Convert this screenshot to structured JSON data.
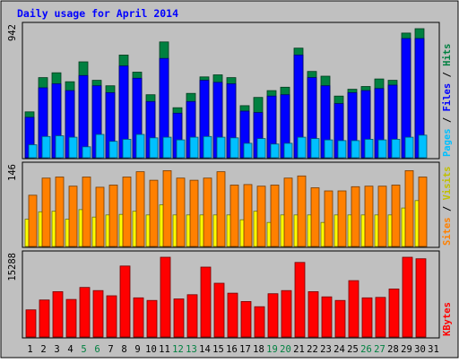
{
  "chart_data": {
    "type": "bar",
    "title": "Daily usage for April 2014",
    "days": [
      "1",
      "2",
      "3",
      "4",
      "5",
      "6",
      "7",
      "8",
      "9",
      "10",
      "11",
      "12",
      "13",
      "14",
      "15",
      "16",
      "17",
      "18",
      "19",
      "20",
      "21",
      "22",
      "23",
      "24",
      "25",
      "26",
      "27",
      "28",
      "29",
      "30",
      "31"
    ],
    "weekend_days": [
      "5",
      "6",
      "12",
      "13",
      "19",
      "20",
      "26",
      "27"
    ],
    "panels": [
      {
        "id": "hits",
        "ymax_label": "942",
        "ymax": 942,
        "axis_labels": [
          "Hits",
          "Files",
          "Pages"
        ],
        "series": [
          {
            "name": "Hits",
            "color": "#008040",
            "values": [
              335,
              585,
              620,
              555,
              700,
              565,
              525,
              750,
              625,
              460,
              845,
              365,
              470,
              590,
              605,
              585,
              380,
              440,
              490,
              515,
              800,
              630,
              595,
              450,
              500,
              520,
              575,
              565,
              910,
              942,
              0
            ]
          },
          {
            "name": "Files",
            "color": "#0000ff",
            "values": [
              295,
              510,
              540,
              490,
              600,
              525,
              475,
              670,
              580,
              410,
              725,
              325,
              410,
              565,
              550,
              540,
              340,
              330,
              450,
              460,
              750,
              585,
              525,
              395,
              475,
              490,
              505,
              530,
              870,
              870,
              0
            ]
          },
          {
            "name": "Pages",
            "color": "#00c0ff",
            "values": [
              95,
              155,
              160,
              150,
              80,
              170,
              120,
              135,
              170,
              145,
              150,
              130,
              150,
              155,
              150,
              145,
              105,
              140,
              100,
              105,
              150,
              140,
              130,
              125,
              125,
              135,
              130,
              135,
              150,
              165,
              0
            ]
          }
        ]
      },
      {
        "id": "visits",
        "ymax_label": "146",
        "ymax": 146,
        "axis_labels": [
          "Visits",
          "Sites"
        ],
        "series": [
          {
            "name": "Visits",
            "color": "#ffff00",
            "values": [
              51,
              65,
              66,
              51,
              69,
              55,
              59,
              60,
              66,
              59,
              78,
              59,
              59,
              59,
              59,
              59,
              50,
              66,
              45,
              59,
              59,
              59,
              45,
              59,
              59,
              59,
              59,
              59,
              72,
              86,
              0
            ]
          },
          {
            "name": "Sites",
            "color": "#ff8000",
            "values": [
              96,
              128,
              130,
              113,
              130,
              111,
              115,
              130,
              140,
              124,
              142,
              128,
              124,
              128,
              140,
              115,
              116,
              113,
              115,
              128,
              132,
              110,
              104,
              104,
              112,
              113,
              113,
              115,
              142,
              130,
              0
            ]
          }
        ]
      },
      {
        "id": "kbytes",
        "ymax_label": "15288",
        "ymax": 15288,
        "axis_labels": [
          "KBytes"
        ],
        "series": [
          {
            "name": "KBytes",
            "color": "#ff0000",
            "values": [
              5200,
              7100,
              8700,
              7200,
              9500,
              8900,
              7900,
              13600,
              7500,
              7000,
              15288,
              7300,
              8100,
              13400,
              10300,
              8400,
              6800,
              5800,
              8300,
              8900,
              14300,
              8700,
              7700,
              7000,
              10800,
              7500,
              7600,
              9200,
              15288,
              15000,
              0
            ]
          }
        ]
      }
    ]
  }
}
